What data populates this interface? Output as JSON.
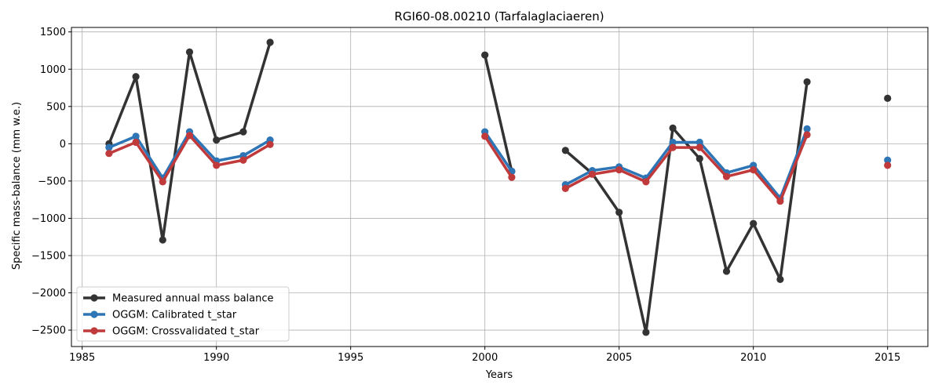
{
  "chart_data": {
    "type": "line",
    "title": "RGI60-08.00210 (Tarfalaglaciaeren)",
    "xlabel": "Years",
    "ylabel": "Specific mass-balance (mm w.e.)",
    "xlim": [
      1984.6,
      2016.5
    ],
    "ylim": [
      -2720,
      1560
    ],
    "xticks": [
      1985,
      1990,
      1995,
      2000,
      2005,
      2010,
      2015
    ],
    "yticks": [
      -2500,
      -2000,
      -1500,
      -1000,
      -500,
      0,
      500,
      1000,
      1500
    ],
    "grid": true,
    "legend_position": "lower-left",
    "series": [
      {
        "name": "Measured annual mass balance",
        "color": "#333333",
        "points": [
          [
            1986,
            0
          ],
          [
            1987,
            900
          ],
          [
            1988,
            -1290
          ],
          [
            1989,
            1230
          ],
          [
            1990,
            50
          ],
          [
            1991,
            160
          ],
          [
            1992,
            1360
          ],
          [
            2000,
            1190
          ],
          [
            2001,
            -370
          ],
          [
            2003,
            -90
          ],
          [
            2004,
            -400
          ],
          [
            2005,
            -920
          ],
          [
            2006,
            -2530
          ],
          [
            2007,
            210
          ],
          [
            2008,
            -200
          ],
          [
            2009,
            -1710
          ],
          [
            2010,
            -1070
          ],
          [
            2011,
            -1820
          ],
          [
            2012,
            830
          ],
          [
            2015,
            610
          ]
        ]
      },
      {
        "name": "OGGM: Calibrated t_star",
        "color": "#2e75b6",
        "points": [
          [
            1986,
            -50
          ],
          [
            1987,
            100
          ],
          [
            1988,
            -460
          ],
          [
            1989,
            160
          ],
          [
            1990,
            -230
          ],
          [
            1991,
            -160
          ],
          [
            1992,
            50
          ],
          [
            2000,
            160
          ],
          [
            2001,
            -370
          ],
          [
            2003,
            -550
          ],
          [
            2004,
            -360
          ],
          [
            2005,
            -310
          ],
          [
            2006,
            -460
          ],
          [
            2007,
            20
          ],
          [
            2008,
            20
          ],
          [
            2009,
            -390
          ],
          [
            2010,
            -290
          ],
          [
            2011,
            -730
          ],
          [
            2012,
            200
          ],
          [
            2015,
            -220
          ]
        ]
      },
      {
        "name": "OGGM: Crossvalidated t_star",
        "color": "#c0393b",
        "points": [
          [
            1986,
            -130
          ],
          [
            1987,
            20
          ],
          [
            1988,
            -510
          ],
          [
            1989,
            110
          ],
          [
            1990,
            -290
          ],
          [
            1991,
            -220
          ],
          [
            1992,
            -10
          ],
          [
            2000,
            100
          ],
          [
            2001,
            -450
          ],
          [
            2003,
            -600
          ],
          [
            2004,
            -410
          ],
          [
            2005,
            -350
          ],
          [
            2006,
            -510
          ],
          [
            2007,
            -50
          ],
          [
            2008,
            -50
          ],
          [
            2009,
            -440
          ],
          [
            2010,
            -350
          ],
          [
            2011,
            -770
          ],
          [
            2012,
            120
          ],
          [
            2015,
            -290
          ]
        ]
      }
    ]
  }
}
